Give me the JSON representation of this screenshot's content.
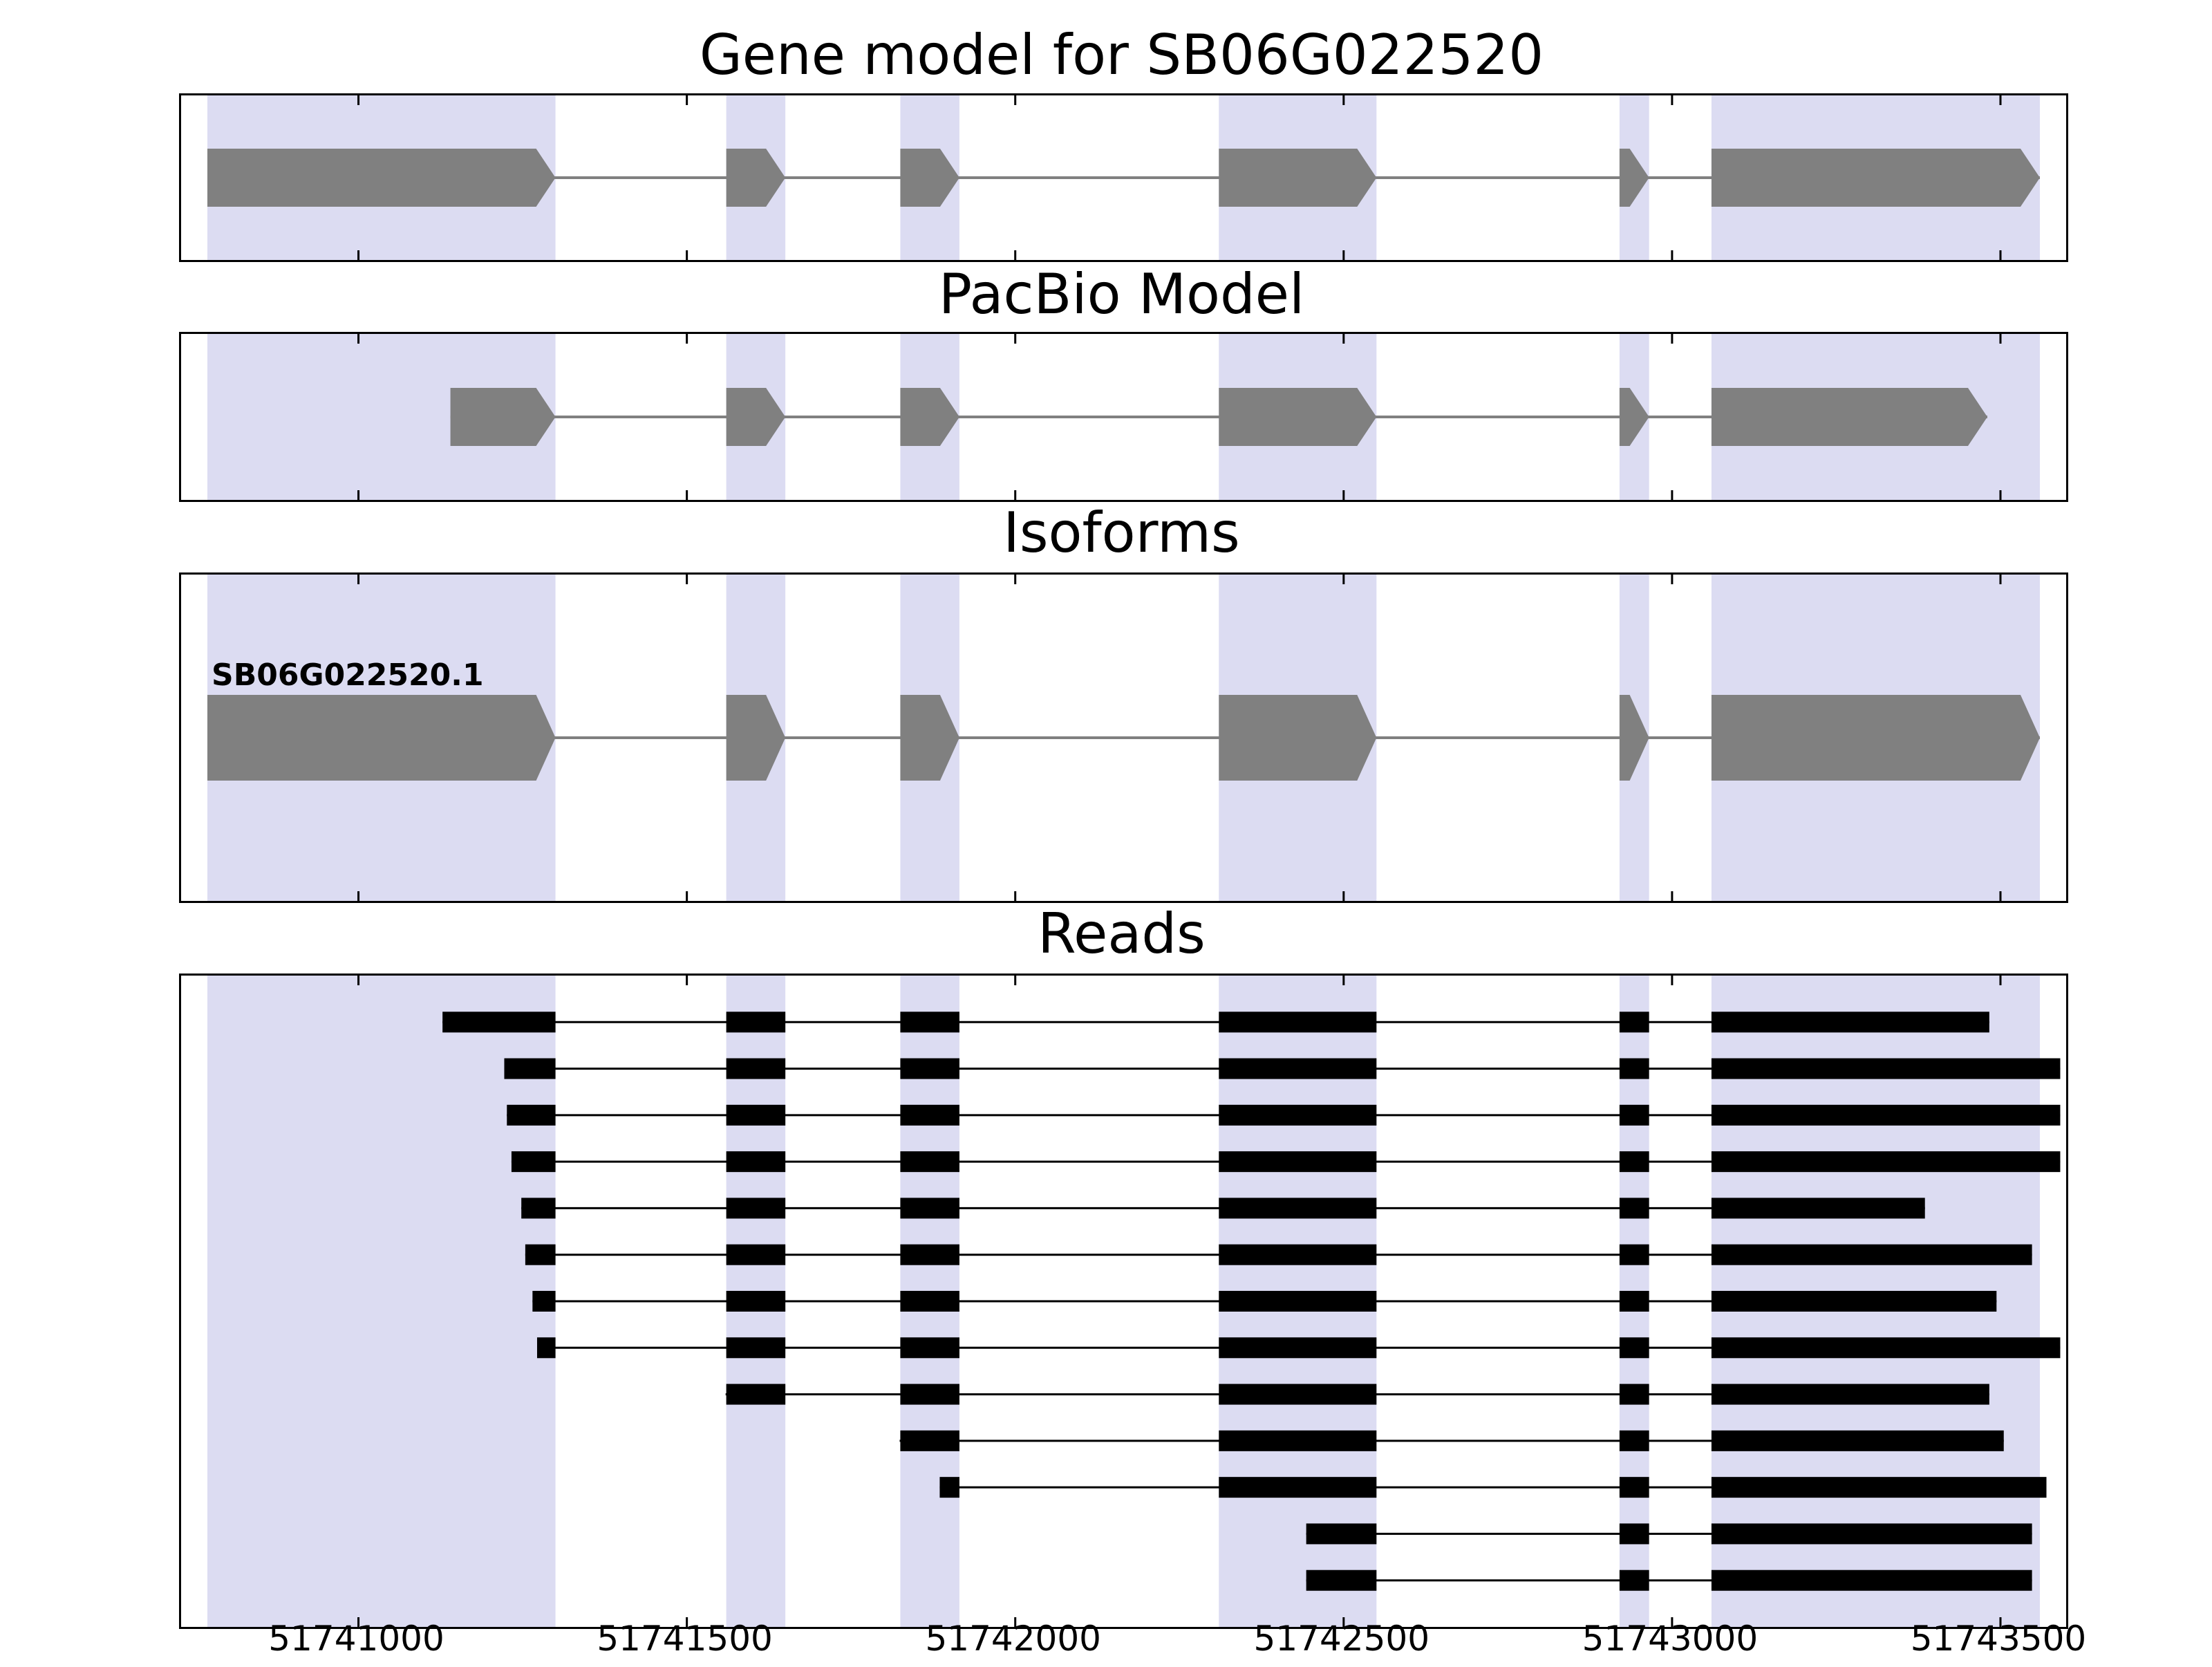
{
  "figure": {
    "panels": {
      "gene_model": {
        "title": "Gene model for SB06G022520"
      },
      "pacbio": {
        "title": "PacBio Model"
      },
      "isoforms": {
        "title": "Isoforms"
      },
      "reads": {
        "title": "Reads"
      }
    }
  },
  "chart_data": {
    "type": "genome-tracks",
    "title": "Gene model for SB06G022520",
    "x_range": [
      51740730,
      51743600
    ],
    "x_ticks": [
      51741000,
      51741500,
      51742000,
      51742500,
      51743000,
      51743500
    ],
    "colors": {
      "highlight": "#dcdcf2",
      "exon": "#808080",
      "intron_line": "#808080",
      "read": "#000000",
      "border": "#000000"
    },
    "highlights": [
      [
        51740770,
        51741300
      ],
      [
        51741560,
        51741650
      ],
      [
        51741825,
        51741915
      ],
      [
        51742310,
        51742550
      ],
      [
        51742920,
        51742965
      ],
      [
        51743060,
        51743560
      ]
    ],
    "gene_model": {
      "strand": "+",
      "exons": [
        [
          51740770,
          51741300
        ],
        [
          51741560,
          51741650
        ],
        [
          51741825,
          51741915
        ],
        [
          51742310,
          51742550
        ],
        [
          51742920,
          51742965
        ],
        [
          51743060,
          51743560
        ]
      ]
    },
    "pacbio_model": {
      "strand": "+",
      "exons": [
        [
          51741140,
          51741300
        ],
        [
          51741560,
          51741650
        ],
        [
          51741825,
          51741915
        ],
        [
          51742310,
          51742550
        ],
        [
          51742920,
          51742965
        ],
        [
          51743060,
          51743480
        ]
      ]
    },
    "isoforms": [
      {
        "name": "SB06G022520.1",
        "strand": "+",
        "exons": [
          [
            51740770,
            51741300
          ],
          [
            51741560,
            51741650
          ],
          [
            51741825,
            51741915
          ],
          [
            51742310,
            51742550
          ],
          [
            51742920,
            51742965
          ],
          [
            51743060,
            51743560
          ]
        ]
      }
    ],
    "reads": [
      [
        51741128,
        51743483
      ],
      [
        51741222,
        51743591
      ],
      [
        51741226,
        51743591
      ],
      [
        51741233,
        51743591
      ],
      [
        51741248,
        51743385
      ],
      [
        51741254,
        51743548
      ],
      [
        51741265,
        51743494
      ],
      [
        51741272,
        51743591
      ],
      [
        51741559,
        51743483
      ],
      [
        51741824,
        51743505
      ],
      [
        51741885,
        51743570
      ],
      [
        51742443,
        51743548
      ],
      [
        51742443,
        51743548
      ]
    ]
  }
}
